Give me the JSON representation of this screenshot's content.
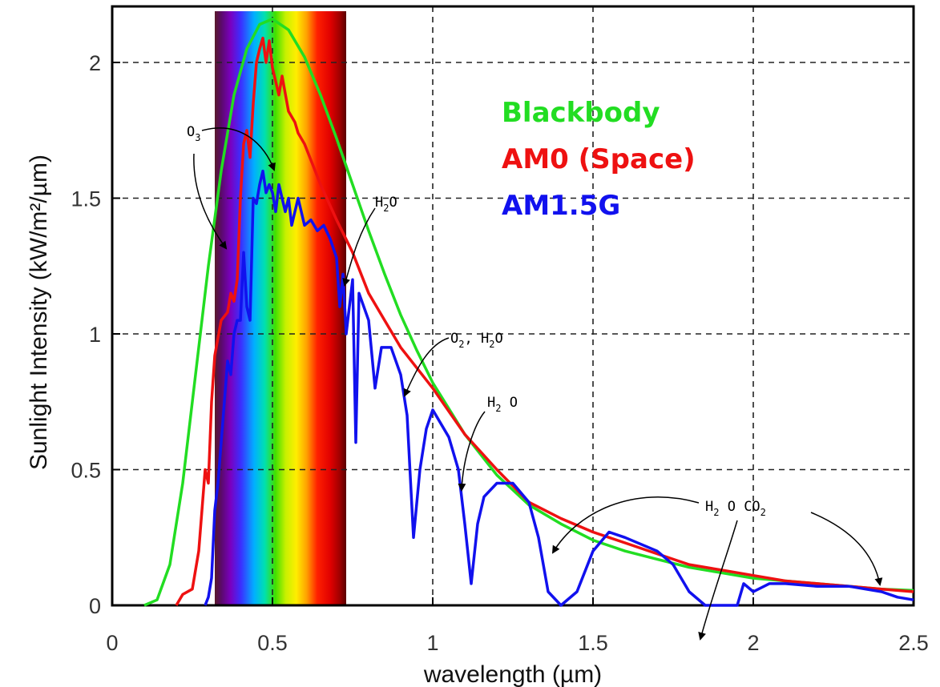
{
  "chart_data": {
    "type": "line",
    "title": "",
    "xlabel": "wavelength (µm)",
    "ylabel": "Sunlight Intensity (kW/m²/µm)",
    "xlim": [
      0,
      2.5
    ],
    "ylim": [
      0,
      2.2
    ],
    "x_ticks": [
      0,
      0.5,
      1,
      1.5,
      2,
      2.5
    ],
    "x_tick_labels": [
      "0",
      "0.5",
      "1",
      "1.5",
      "2",
      "2.5"
    ],
    "y_ticks": [
      0,
      0.5,
      1,
      1.5,
      2
    ],
    "y_tick_labels": [
      "0",
      "0.5",
      "1",
      "1.5",
      "2"
    ],
    "grid": true,
    "visible_spectrum_band": [
      0.32,
      0.73
    ],
    "legend_placement": "top-center",
    "series": [
      {
        "name": "Blackbody",
        "color": "#22dd22",
        "points": [
          [
            0.1,
            0.0
          ],
          [
            0.14,
            0.02
          ],
          [
            0.18,
            0.15
          ],
          [
            0.22,
            0.45
          ],
          [
            0.26,
            0.85
          ],
          [
            0.3,
            1.25
          ],
          [
            0.34,
            1.6
          ],
          [
            0.38,
            1.88
          ],
          [
            0.42,
            2.05
          ],
          [
            0.46,
            2.14
          ],
          [
            0.5,
            2.16
          ],
          [
            0.55,
            2.12
          ],
          [
            0.6,
            2.02
          ],
          [
            0.65,
            1.88
          ],
          [
            0.7,
            1.72
          ],
          [
            0.75,
            1.55
          ],
          [
            0.8,
            1.38
          ],
          [
            0.85,
            1.22
          ],
          [
            0.9,
            1.07
          ],
          [
            0.95,
            0.94
          ],
          [
            1.0,
            0.82
          ],
          [
            1.1,
            0.63
          ],
          [
            1.2,
            0.48
          ],
          [
            1.3,
            0.37
          ],
          [
            1.4,
            0.3
          ],
          [
            1.5,
            0.24
          ],
          [
            1.6,
            0.2
          ],
          [
            1.7,
            0.17
          ],
          [
            1.8,
            0.14
          ],
          [
            1.9,
            0.12
          ],
          [
            2.0,
            0.1
          ],
          [
            2.1,
            0.09
          ],
          [
            2.2,
            0.08
          ],
          [
            2.3,
            0.07
          ],
          [
            2.4,
            0.06
          ],
          [
            2.5,
            0.055
          ]
        ]
      },
      {
        "name": "AM0 (Space)",
        "color": "#ee1111",
        "points": [
          [
            0.2,
            0.0
          ],
          [
            0.22,
            0.04
          ],
          [
            0.25,
            0.06
          ],
          [
            0.27,
            0.2
          ],
          [
            0.29,
            0.5
          ],
          [
            0.3,
            0.45
          ],
          [
            0.31,
            0.75
          ],
          [
            0.32,
            0.92
          ],
          [
            0.34,
            1.05
          ],
          [
            0.36,
            1.08
          ],
          [
            0.37,
            1.15
          ],
          [
            0.38,
            1.12
          ],
          [
            0.39,
            1.2
          ],
          [
            0.4,
            1.5
          ],
          [
            0.41,
            1.7
          ],
          [
            0.42,
            1.75
          ],
          [
            0.43,
            1.65
          ],
          [
            0.44,
            1.85
          ],
          [
            0.45,
            2.0
          ],
          [
            0.46,
            2.05
          ],
          [
            0.47,
            2.09
          ],
          [
            0.48,
            2.0
          ],
          [
            0.49,
            2.08
          ],
          [
            0.5,
            1.98
          ],
          [
            0.52,
            1.88
          ],
          [
            0.53,
            1.95
          ],
          [
            0.55,
            1.82
          ],
          [
            0.57,
            1.78
          ],
          [
            0.58,
            1.74
          ],
          [
            0.6,
            1.7
          ],
          [
            0.65,
            1.55
          ],
          [
            0.7,
            1.42
          ],
          [
            0.75,
            1.3
          ],
          [
            0.8,
            1.15
          ],
          [
            0.85,
            1.05
          ],
          [
            0.9,
            0.95
          ],
          [
            1.0,
            0.8
          ],
          [
            1.1,
            0.63
          ],
          [
            1.2,
            0.5
          ],
          [
            1.3,
            0.38
          ],
          [
            1.4,
            0.32
          ],
          [
            1.5,
            0.27
          ],
          [
            1.6,
            0.23
          ],
          [
            1.7,
            0.19
          ],
          [
            1.8,
            0.15
          ],
          [
            1.9,
            0.13
          ],
          [
            2.0,
            0.11
          ],
          [
            2.1,
            0.09
          ],
          [
            2.2,
            0.08
          ],
          [
            2.3,
            0.07
          ],
          [
            2.4,
            0.06
          ],
          [
            2.5,
            0.05
          ]
        ]
      },
      {
        "name": "AM1.5G",
        "color": "#1111ee",
        "points": [
          [
            0.29,
            0.0
          ],
          [
            0.3,
            0.03
          ],
          [
            0.31,
            0.1
          ],
          [
            0.32,
            0.35
          ],
          [
            0.33,
            0.45
          ],
          [
            0.34,
            0.6
          ],
          [
            0.35,
            0.75
          ],
          [
            0.36,
            0.9
          ],
          [
            0.37,
            0.85
          ],
          [
            0.38,
            1.0
          ],
          [
            0.39,
            1.05
          ],
          [
            0.4,
            1.05
          ],
          [
            0.41,
            1.3
          ],
          [
            0.42,
            1.1
          ],
          [
            0.43,
            1.05
          ],
          [
            0.44,
            1.5
          ],
          [
            0.45,
            1.48
          ],
          [
            0.46,
            1.55
          ],
          [
            0.47,
            1.6
          ],
          [
            0.48,
            1.52
          ],
          [
            0.49,
            1.55
          ],
          [
            0.5,
            1.52
          ],
          [
            0.51,
            1.45
          ],
          [
            0.52,
            1.55
          ],
          [
            0.53,
            1.5
          ],
          [
            0.54,
            1.45
          ],
          [
            0.55,
            1.5
          ],
          [
            0.56,
            1.4
          ],
          [
            0.58,
            1.5
          ],
          [
            0.6,
            1.4
          ],
          [
            0.62,
            1.42
          ],
          [
            0.64,
            1.38
          ],
          [
            0.66,
            1.4
          ],
          [
            0.68,
            1.35
          ],
          [
            0.7,
            1.28
          ],
          [
            0.71,
            1.1
          ],
          [
            0.72,
            1.22
          ],
          [
            0.73,
            1.0
          ],
          [
            0.74,
            1.1
          ],
          [
            0.75,
            1.2
          ],
          [
            0.76,
            0.6
          ],
          [
            0.77,
            1.15
          ],
          [
            0.8,
            1.05
          ],
          [
            0.82,
            0.8
          ],
          [
            0.84,
            0.95
          ],
          [
            0.87,
            0.95
          ],
          [
            0.9,
            0.85
          ],
          [
            0.92,
            0.7
          ],
          [
            0.94,
            0.25
          ],
          [
            0.96,
            0.5
          ],
          [
            0.98,
            0.65
          ],
          [
            1.0,
            0.72
          ],
          [
            1.05,
            0.62
          ],
          [
            1.08,
            0.5
          ],
          [
            1.1,
            0.3
          ],
          [
            1.12,
            0.08
          ],
          [
            1.14,
            0.3
          ],
          [
            1.16,
            0.4
          ],
          [
            1.2,
            0.45
          ],
          [
            1.25,
            0.45
          ],
          [
            1.3,
            0.38
          ],
          [
            1.33,
            0.25
          ],
          [
            1.36,
            0.05
          ],
          [
            1.4,
            0.0
          ],
          [
            1.45,
            0.05
          ],
          [
            1.5,
            0.2
          ],
          [
            1.55,
            0.27
          ],
          [
            1.6,
            0.25
          ],
          [
            1.7,
            0.2
          ],
          [
            1.75,
            0.15
          ],
          [
            1.8,
            0.05
          ],
          [
            1.85,
            0.0
          ],
          [
            1.95,
            0.0
          ],
          [
            1.97,
            0.08
          ],
          [
            2.0,
            0.05
          ],
          [
            2.05,
            0.08
          ],
          [
            2.1,
            0.08
          ],
          [
            2.2,
            0.07
          ],
          [
            2.3,
            0.07
          ],
          [
            2.4,
            0.05
          ],
          [
            2.45,
            0.03
          ],
          [
            2.5,
            0.02
          ]
        ]
      }
    ],
    "legend": [
      {
        "label": "Blackbody",
        "color": "#22dd22"
      },
      {
        "label": "AM0 (Space)",
        "color": "#ee1111"
      },
      {
        "label": "AM1.5G",
        "color": "#1111ee"
      }
    ],
    "annotations": [
      {
        "main": "O",
        "sub": "3"
      },
      {
        "main": "H",
        "sub": "2",
        "tail": "O"
      },
      {
        "main": "O",
        "sub": "2",
        "tail": ", H",
        "sub2": "2",
        "tail2": "O"
      },
      {
        "main": "H",
        "sub": "2",
        "tail": " O"
      },
      {
        "main": "H",
        "sub": "2",
        "tail": " O  CO",
        "sub2": "2"
      }
    ]
  }
}
